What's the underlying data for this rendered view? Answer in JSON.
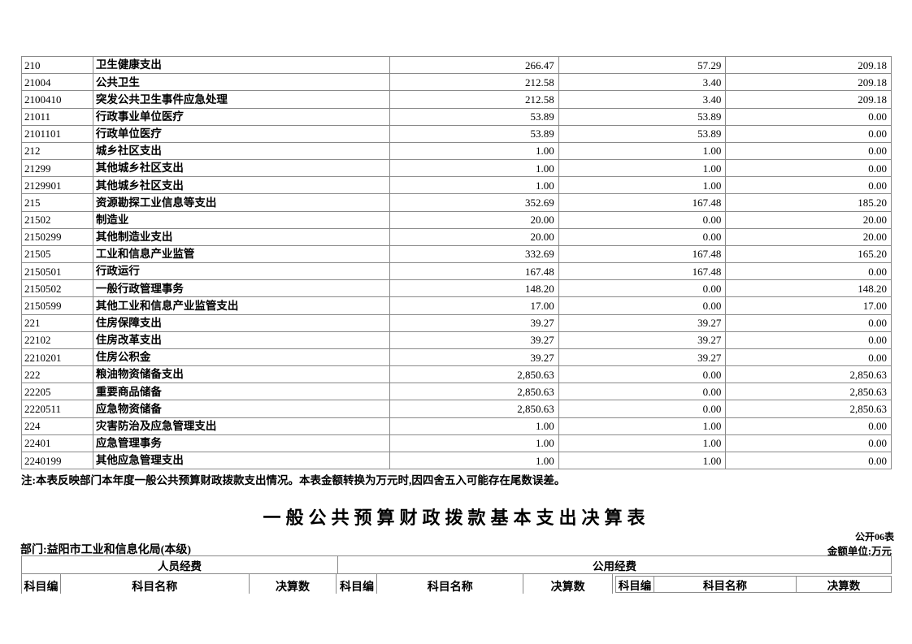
{
  "document": {
    "note": "注:本表反映部门本年度一般公共预算财政拨款支出情况。本表金额转换为万元时,因四舍五入可能存在尾数误差。",
    "title": "一般公共预算财政拨款基本支出决算表",
    "form_no": "公开06表",
    "department": "部门:益阳市工业和信息化局(本级)",
    "unit": "金额单位:万元"
  },
  "expense_table": {
    "rows": [
      [
        "210",
        "卫生健康支出",
        "266.47",
        "57.29",
        "209.18"
      ],
      [
        "21004",
        "公共卫生",
        "212.58",
        "3.40",
        "209.18"
      ],
      [
        "2100410",
        "突发公共卫生事件应急处理",
        "212.58",
        "3.40",
        "209.18"
      ],
      [
        "21011",
        "行政事业单位医疗",
        "53.89",
        "53.89",
        "0.00"
      ],
      [
        "2101101",
        "行政单位医疗",
        "53.89",
        "53.89",
        "0.00"
      ],
      [
        "212",
        "城乡社区支出",
        "1.00",
        "1.00",
        "0.00"
      ],
      [
        "21299",
        "其他城乡社区支出",
        "1.00",
        "1.00",
        "0.00"
      ],
      [
        "2129901",
        "其他城乡社区支出",
        "1.00",
        "1.00",
        "0.00"
      ],
      [
        "215",
        "资源勘探工业信息等支出",
        "352.69",
        "167.48",
        "185.20"
      ],
      [
        "21502",
        "制造业",
        "20.00",
        "0.00",
        "20.00"
      ],
      [
        "2150299",
        "其他制造业支出",
        "20.00",
        "0.00",
        "20.00"
      ],
      [
        "21505",
        "工业和信息产业监管",
        "332.69",
        "167.48",
        "165.20"
      ],
      [
        "2150501",
        "行政运行",
        "167.48",
        "167.48",
        "0.00"
      ],
      [
        "2150502",
        "一般行政管理事务",
        "148.20",
        "0.00",
        "148.20"
      ],
      [
        "2150599",
        "其他工业和信息产业监管支出",
        "17.00",
        "0.00",
        "17.00"
      ],
      [
        "221",
        "住房保障支出",
        "39.27",
        "39.27",
        "0.00"
      ],
      [
        "22102",
        "住房改革支出",
        "39.27",
        "39.27",
        "0.00"
      ],
      [
        "2210201",
        "住房公积金",
        "39.27",
        "39.27",
        "0.00"
      ],
      [
        "222",
        "粮油物资储备支出",
        "2,850.63",
        "0.00",
        "2,850.63"
      ],
      [
        "22205",
        "重要商品储备",
        "2,850.63",
        "0.00",
        "2,850.63"
      ],
      [
        "2220511",
        "应急物资储备",
        "2,850.63",
        "0.00",
        "2,850.63"
      ],
      [
        "224",
        "灾害防治及应急管理支出",
        "1.00",
        "1.00",
        "0.00"
      ],
      [
        "22401",
        "应急管理事务",
        "1.00",
        "1.00",
        "0.00"
      ],
      [
        "2240199",
        "其他应急管理支出",
        "1.00",
        "1.00",
        "0.00"
      ]
    ]
  },
  "basic_table": {
    "personnel_label": "人员经费",
    "public_label": "公用经费",
    "sub_headers": [
      "科目编",
      "科目名称",
      "决算数"
    ]
  }
}
